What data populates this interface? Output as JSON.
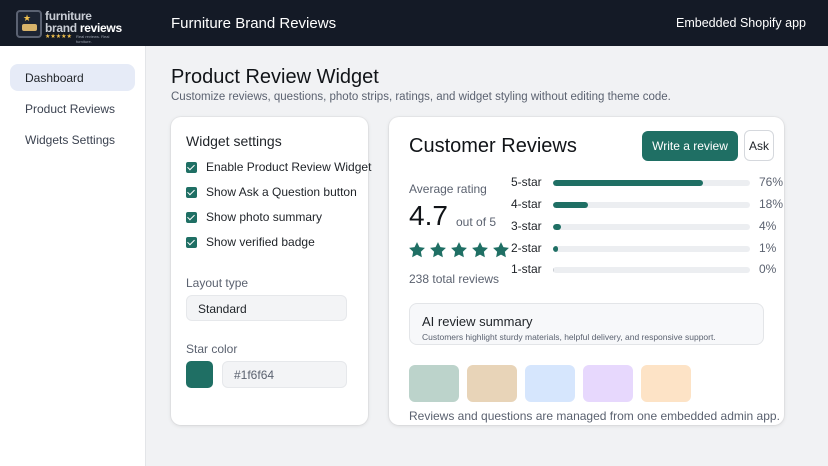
{
  "header": {
    "logo_text_line1": "furniture",
    "logo_text_line2_a": "brand",
    "logo_text_line2_b": "reviews",
    "logo_tagline": "Real reviews. Real furniture.",
    "app_title": "Furniture Brand Reviews",
    "embed_label": "Embedded Shopify app"
  },
  "sidebar": {
    "items": [
      {
        "label": "Dashboard",
        "active": true
      },
      {
        "label": "Product Reviews",
        "active": false
      },
      {
        "label": "Widgets Settings",
        "active": false
      }
    ]
  },
  "page": {
    "title": "Product Review Widget",
    "subtitle": "Customize reviews, questions, photo strips, ratings, and widget styling without editing theme code."
  },
  "settings": {
    "title": "Widget settings",
    "checkboxes": [
      {
        "label": "Enable Product Review Widget",
        "checked": true
      },
      {
        "label": "Show Ask a Question button",
        "checked": true
      },
      {
        "label": "Show photo summary",
        "checked": true
      },
      {
        "label": "Show verified badge",
        "checked": true
      }
    ],
    "layout_label": "Layout type",
    "layout_value": "Standard",
    "star_color_label": "Star color",
    "star_color_value": "#1f6f64"
  },
  "reviews": {
    "title": "Customer Reviews",
    "write_button": "Write a review",
    "ask_button": "Ask",
    "avg_label": "Average rating",
    "avg_value": "4.7",
    "out_of": "out of 5",
    "stars_filled": 5,
    "total": "238 total reviews",
    "distribution": [
      {
        "label": "5-star",
        "pct_text": "76%",
        "pct": 76
      },
      {
        "label": "4-star",
        "pct_text": "18%",
        "pct": 18
      },
      {
        "label": "3-star",
        "pct_text": "4%",
        "pct": 4
      },
      {
        "label": "2-star",
        "pct_text": "1%",
        "pct": 1
      },
      {
        "label": "1-star",
        "pct_text": "0%",
        "pct": 0
      }
    ],
    "ai_title": "AI review summary",
    "ai_text": "Customers highlight sturdy materials, helpful delivery, and responsive support.",
    "photo_colors": [
      "#bcd3cb",
      "#e8d4b8",
      "#d6e6fd",
      "#e7d8fd",
      "#fde3c6"
    ],
    "footer_note": "Reviews and questions are managed from one embedded admin app."
  },
  "colors": {
    "accent": "#1f6f64",
    "topbar": "#141a26"
  }
}
